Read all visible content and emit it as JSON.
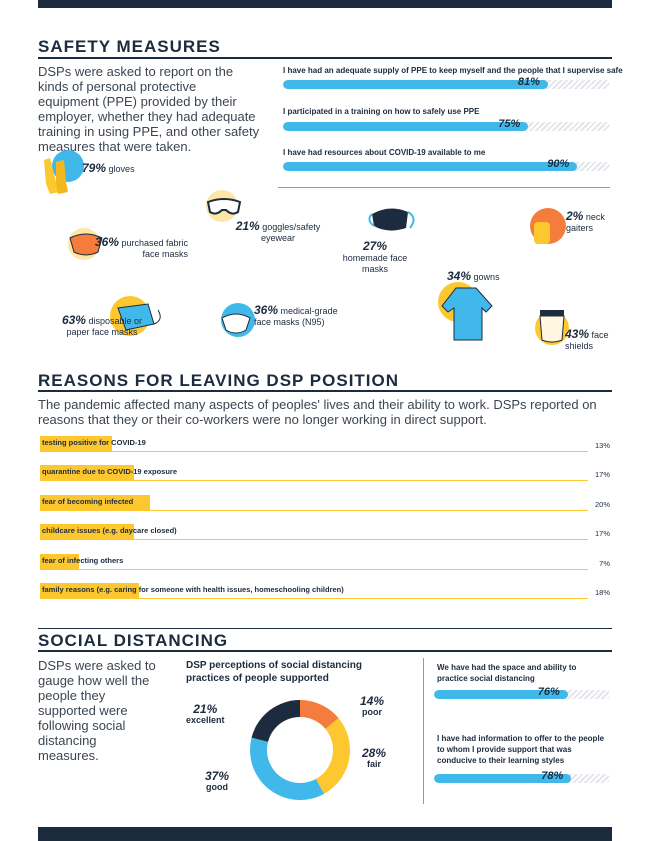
{
  "safety": {
    "title": "SAFETY MEASURES",
    "intro": "DSPs were asked to report on the kinds of personal protective equipment (PPE) provided by their employer, whether they had adequate training in using PPE, and other safety measures that were taken.",
    "bars": [
      {
        "label": "I have had an adequate supply of PPE to keep myself and the people that I supervise safe",
        "value": 81,
        "value_text": "81%"
      },
      {
        "label": "I participated in a training on how to safely use PPE",
        "value": 75,
        "value_text": "75%"
      },
      {
        "label": "I have had resources about COVID-19 available to me",
        "value": 90,
        "value_text": "90%"
      }
    ],
    "ppe": [
      {
        "pct": "79%",
        "label": "gloves",
        "icon": "gloves-icon"
      },
      {
        "pct": "21%",
        "label": "goggles/safety eyewear",
        "icon": "goggles-icon"
      },
      {
        "pct": "36%",
        "label": "purchased fabric face masks",
        "icon": "fabric-mask-icon"
      },
      {
        "pct": "27%",
        "label": "homemade face masks",
        "icon": "homemade-mask-icon"
      },
      {
        "pct": "2%",
        "label": "neck gaiters",
        "icon": "neck-gaiter-icon"
      },
      {
        "pct": "34%",
        "label": "gowns",
        "icon": "gown-icon"
      },
      {
        "pct": "63%",
        "label": "disposable or paper face masks",
        "icon": "disposable-mask-icon"
      },
      {
        "pct": "36%",
        "label": "medical-grade face masks (N95)",
        "icon": "n95-mask-icon"
      },
      {
        "pct": "43%",
        "label": "face shields",
        "icon": "face-shield-icon"
      }
    ]
  },
  "reasons": {
    "title": "REASONS FOR LEAVING DSP POSITION",
    "intro": "The pandemic affected many aspects of peoples' lives and their ability to work. DSPs reported on reasons that they or their co-workers were no longer working in direct support.",
    "items": [
      {
        "label": "testing positive for COVID-19",
        "value": 13,
        "value_text": "13%"
      },
      {
        "label": "quarantine due to COVID-19 exposure",
        "value": 17,
        "value_text": "17%"
      },
      {
        "label": "fear of becoming infected",
        "value": 20,
        "value_text": "20%"
      },
      {
        "label": "childcare issues (e.g. daycare closed)",
        "value": 17,
        "value_text": "17%"
      },
      {
        "label": "fear of infecting others",
        "value": 7,
        "value_text": "7%"
      },
      {
        "label": "family reasons (e.g. caring for someone with health issues, homeschooling children)",
        "value": 18,
        "value_text": "18%"
      }
    ]
  },
  "social": {
    "title": "SOCIAL DISTANCING",
    "intro": "DSPs were asked to gauge how well the people they supported were following social distancing measures.",
    "donut_title": "DSP perceptions of social distancing practices of people supported",
    "bars": [
      {
        "label": "We have had the space and ability to practice social distancing",
        "value": 76,
        "value_text": "76%"
      },
      {
        "label": "I have had information to offer to the people to whom I provide support that was conducive to their learning styles",
        "value": 78,
        "value_text": "78%"
      }
    ]
  },
  "chart_data": {
    "type": "pie",
    "title": "DSP perceptions of social distancing practices of people supported",
    "slices": [
      {
        "label": "poor",
        "value": 14,
        "value_text": "14%",
        "color": "#f47c3c"
      },
      {
        "label": "fair",
        "value": 28,
        "value_text": "28%",
        "color": "#fdc82f"
      },
      {
        "label": "good",
        "value": 37,
        "value_text": "37%",
        "color": "#41b8ea"
      },
      {
        "label": "excellent",
        "value": 21,
        "value_text": "21%",
        "color": "#1c2b3e"
      }
    ]
  },
  "colors": {
    "navy": "#1c2b3e",
    "blue": "#41b8ea",
    "yellow": "#fdc82f",
    "orange": "#f47c3c"
  }
}
